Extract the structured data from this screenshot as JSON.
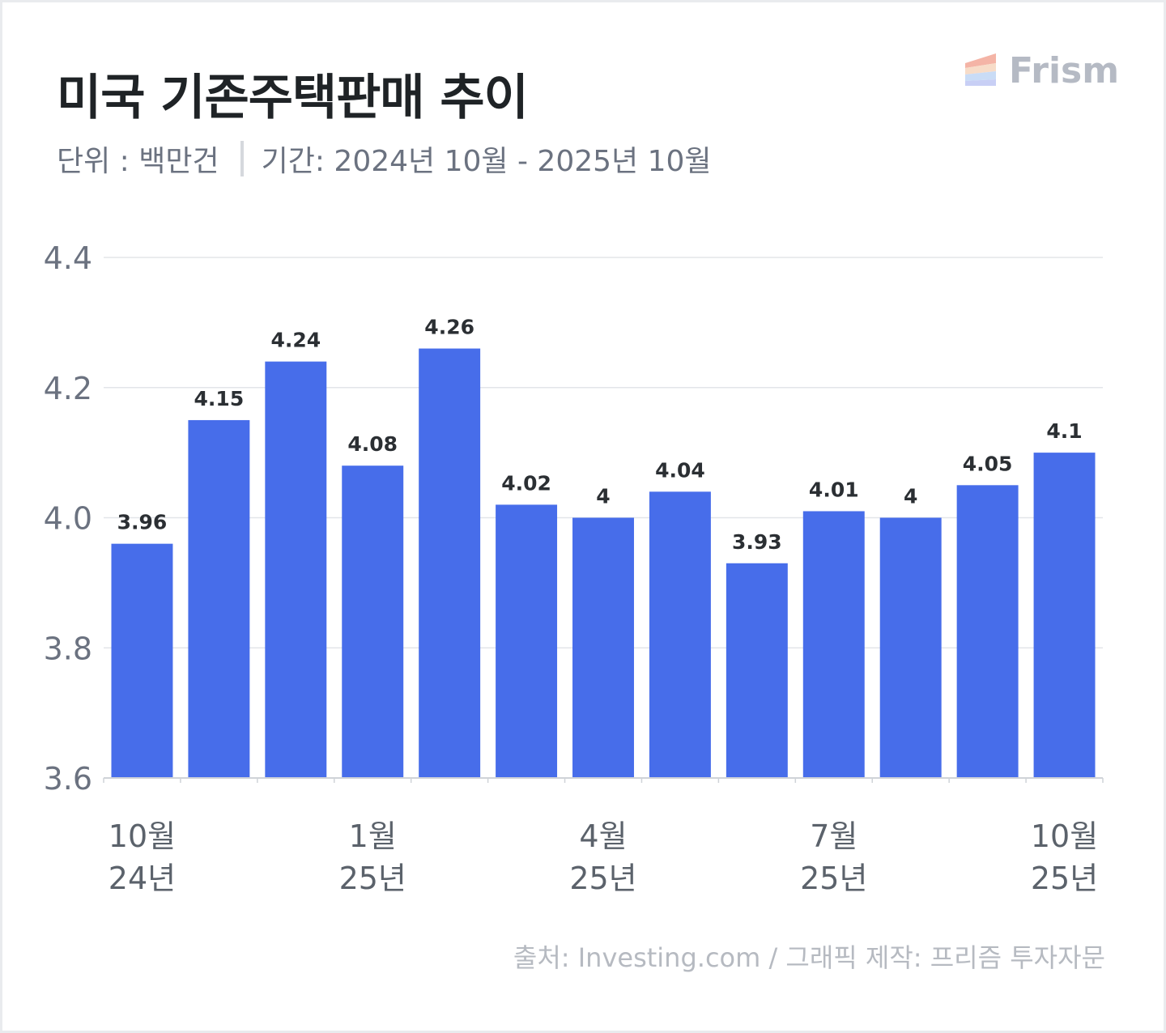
{
  "header": {
    "title": "미국 기존주택판매 추이",
    "unit": "단위 : 백만건",
    "period": "기간: 2024년 10월 - 2025년 10월"
  },
  "brand": {
    "name": "Frism",
    "icon": "frism-logo-icon",
    "colors": [
      "#f4b4a6",
      "#f7dcc8",
      "#c9dcf6",
      "#c8cff5"
    ]
  },
  "footer": {
    "source": "출처: Investing.com / 그래픽 제작: 프리즘 투자자문"
  },
  "chart_data": {
    "type": "bar",
    "categories": [
      "10월 24년",
      "",
      "",
      "1월 25년",
      "",
      "",
      "4월 25년",
      "",
      "",
      "7월 25년",
      "",
      "",
      "10월 25년"
    ],
    "tick_labels": [
      {
        "index": 0,
        "month": "10월",
        "year": "24년"
      },
      {
        "index": 3,
        "month": "1월",
        "year": "25년"
      },
      {
        "index": 6,
        "month": "4월",
        "year": "25년"
      },
      {
        "index": 9,
        "month": "7월",
        "year": "25년"
      },
      {
        "index": 12,
        "month": "10월",
        "year": "25년"
      }
    ],
    "values": [
      3.96,
      4.15,
      4.24,
      4.08,
      4.26,
      4.02,
      4,
      4.04,
      3.93,
      4.01,
      4,
      4.05,
      4.1
    ],
    "data_labels": [
      "3.96",
      "4.15",
      "4.24",
      "4.08",
      "4.26",
      "4.02",
      "4",
      "4.04",
      "3.93",
      "4.01",
      "4",
      "4.05",
      "4.1"
    ],
    "yticks": [
      "4.4",
      "4.2",
      "4.0",
      "3.8",
      "3.6"
    ],
    "ylim": [
      3.6,
      4.4
    ],
    "grid": true,
    "legend": "none",
    "bar_color": "#476dea",
    "title": "미국 기존주택판매 추이",
    "xlabel": "",
    "ylabel": ""
  }
}
